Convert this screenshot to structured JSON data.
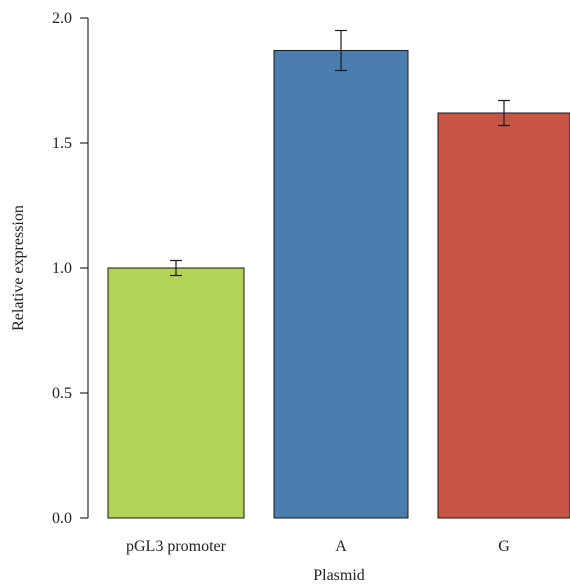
{
  "chart_data": {
    "type": "bar",
    "categories": [
      "pGL3 promoter",
      "A",
      "G"
    ],
    "values": [
      1.0,
      1.87,
      1.62
    ],
    "errors": [
      0.03,
      0.08,
      0.05
    ],
    "colors": [
      "#b2d356",
      "#4a7eae",
      "#c85543"
    ],
    "xlabel": "Plasmid",
    "ylabel": "Relative expression",
    "ylim": [
      0,
      2.0
    ],
    "yticks": [
      "0.0",
      "0.5",
      "1.0",
      "1.5",
      "2.0"
    ],
    "ytick_values": [
      0,
      0.5,
      1.0,
      1.5,
      2.0
    ],
    "grid": false
  }
}
